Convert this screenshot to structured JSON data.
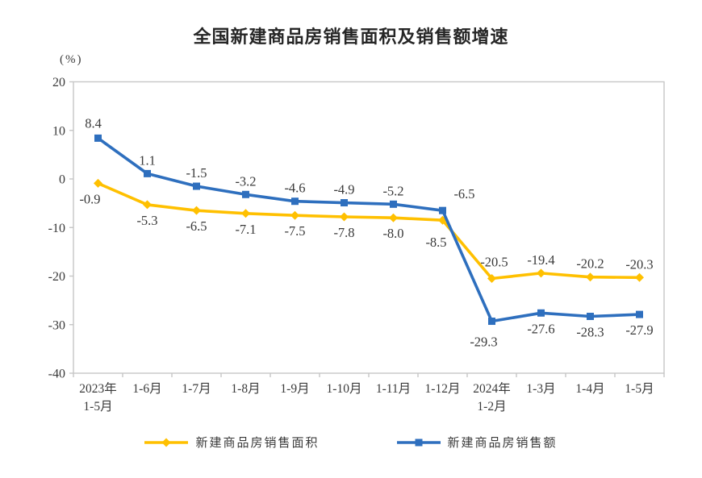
{
  "title": "全国新建商品房销售面积及销售额增速",
  "unit_label": "(%)",
  "chart_data": {
    "type": "line",
    "categories": [
      "2023年\n1-5月",
      "1-6月",
      "1-7月",
      "1-8月",
      "1-9月",
      "1-10月",
      "1-11月",
      "1-12月",
      "2024年\n1-2月",
      "1-3月",
      "1-4月",
      "1-5月"
    ],
    "series": [
      {
        "name": "新建商品房销售面积",
        "color": "#FFC000",
        "marker": "diamond",
        "values": [
          -0.9,
          -5.3,
          -6.5,
          -7.1,
          -7.5,
          -7.8,
          -8.0,
          -8.5,
          -20.5,
          -19.4,
          -20.2,
          -20.3
        ],
        "label_side": [
          "below",
          "below",
          "below",
          "below",
          "below",
          "below",
          "below",
          "below",
          "above",
          "above",
          "above",
          "above"
        ],
        "label_offsets": {
          "0": {
            "dx": -10,
            "dy": 0
          },
          "7": {
            "dx": -8,
            "dy": 8
          },
          "8": {
            "dx": 3,
            "dy": -4
          }
        }
      },
      {
        "name": "新建商品房销售额",
        "color": "#2E6FBE",
        "marker": "square",
        "values": [
          8.4,
          1.1,
          -1.5,
          -3.2,
          -4.6,
          -4.9,
          -5.2,
          -6.5,
          -29.3,
          -27.6,
          -28.3,
          -27.9
        ],
        "label_side": [
          "above",
          "above",
          "above",
          "above",
          "above",
          "above",
          "above",
          "above",
          "below",
          "below",
          "below",
          "below"
        ],
        "label_offsets": {
          "0": {
            "dx": -6,
            "dy": -2
          },
          "7": {
            "dx": 27,
            "dy": -4
          },
          "8": {
            "dx": -10,
            "dy": 6
          }
        }
      }
    ],
    "title": "全国新建商品房销售面积及销售额增速",
    "xlabel": "",
    "ylabel": "(%)",
    "ylim": [
      -40,
      20
    ],
    "yticks": [
      20,
      10,
      0,
      -10,
      -20,
      -30,
      -40
    ],
    "grid": false,
    "legend_position": "bottom",
    "axis_color": "#c6c6c6",
    "text_color": "#3a3a3a"
  }
}
